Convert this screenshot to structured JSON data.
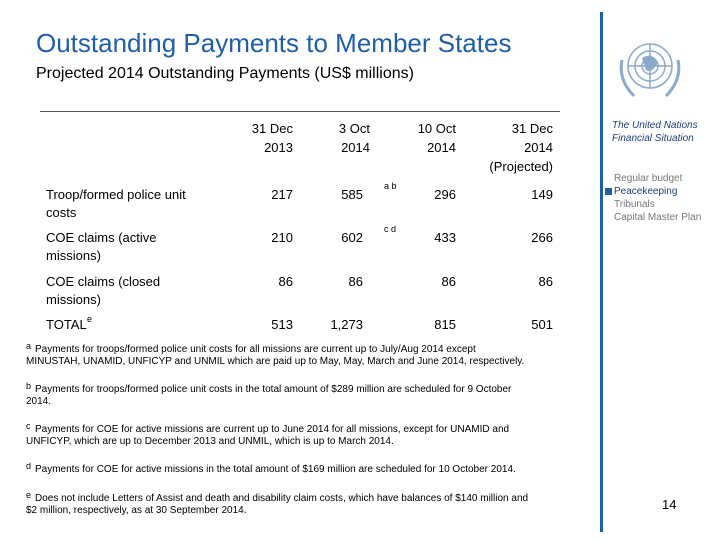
{
  "header": {
    "title": "Outstanding Payments to Member States",
    "subtitle": "Projected 2014 Outstanding Payments (US$ millions)"
  },
  "table": {
    "columns": [
      [
        "31 Dec",
        "2013"
      ],
      [
        "3 Oct",
        "2014"
      ],
      [
        "10 Oct",
        "2014"
      ],
      [
        "31 Dec",
        "2014",
        "(Projected)"
      ]
    ],
    "rows": [
      {
        "label": [
          "Troop/formed police unit",
          "costs"
        ],
        "values": [
          "217",
          "585",
          "296",
          "149"
        ],
        "note": "a b"
      },
      {
        "label": [
          "COE claims (active",
          "missions)"
        ],
        "values": [
          "210",
          "602",
          "433",
          "266"
        ],
        "note": "c d"
      },
      {
        "label": [
          "COE claims (closed",
          "missions)"
        ],
        "values": [
          "86",
          "86",
          "86",
          "86"
        ]
      },
      {
        "label": [
          "TOTAL"
        ],
        "label_note": "e",
        "values": [
          "513",
          "1,273",
          "815",
          "501"
        ]
      }
    ]
  },
  "footnotes": [
    {
      "mark": "a",
      "lines": [
        "Payments for troops/formed police unit costs for all missions are current up to July/Aug 2014 except",
        "MINUSTAH, UNAMID, UNFICYP and UNMIL which are paid up to May, May, March and June 2014, respectively."
      ]
    },
    {
      "mark": "b",
      "lines": [
        "Payments for troops/formed police unit costs in the total amount of $289 million are scheduled for 9 October",
        "2014."
      ]
    },
    {
      "mark": "c",
      "lines": [
        "Payments for COE for active missions are current up to June 2014 for all missions, except for UNAMID and",
        "UNFICYP, which are up to December 2013 and UNMIL, which is up to March 2014."
      ]
    },
    {
      "mark": "d",
      "lines": [
        "Payments for COE for active missions in the total amount of $169 million are scheduled for 10 October 2014."
      ]
    },
    {
      "mark": "e",
      "lines": [
        "Does not include Letters of Assist and death and disability claim costs, which have balances of $140 million and",
        "$2 million, respectively, as at 30 September 2014."
      ]
    }
  ],
  "sidebar": {
    "title": [
      "The United Nations",
      "Financial Situation"
    ],
    "menu": [
      "Regular budget",
      "Peacekeeping",
      "Tribunals",
      "Capital Master Plan"
    ]
  },
  "page_number": "14"
}
